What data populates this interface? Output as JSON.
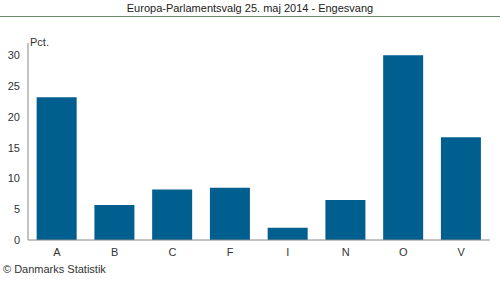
{
  "chart_data": {
    "type": "bar",
    "title": "Europa-Parlamentsvalg 25. maj 2014 - Engesvang",
    "y_label": "Pct.",
    "source": "© Danmarks Statistik",
    "categories": [
      "A",
      "B",
      "C",
      "F",
      "I",
      "N",
      "O",
      "V"
    ],
    "values": [
      23.2,
      5.7,
      8.2,
      8.5,
      2.0,
      6.5,
      30.0,
      16.7
    ],
    "color": "#005f8f",
    "ylim": [
      0,
      32
    ],
    "yticks": [
      0,
      5,
      10,
      15,
      20,
      25,
      30
    ],
    "grid": false
  }
}
